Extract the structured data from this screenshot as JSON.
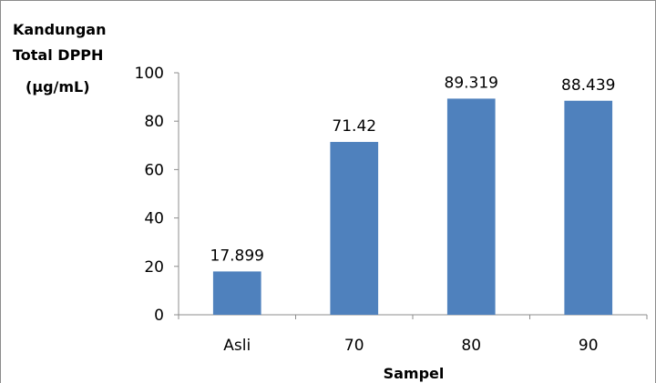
{
  "chart_data": {
    "type": "bar",
    "ylabel_lines": [
      "Kandungan",
      "Total DPPH",
      "(µg/mL)"
    ],
    "xlabel": "Sampel",
    "categories": [
      "Asli",
      "70",
      "80",
      "90"
    ],
    "values": [
      17.899,
      71.42,
      89.319,
      88.439
    ],
    "data_labels": [
      "17.899",
      "71.42",
      "89.319",
      "88.439"
    ],
    "ylim": [
      0,
      100
    ],
    "yticks": [
      "0",
      "20",
      "40",
      "60",
      "80",
      "100"
    ],
    "grid": false,
    "legend": "none",
    "bar_color": "#4f81bd"
  }
}
